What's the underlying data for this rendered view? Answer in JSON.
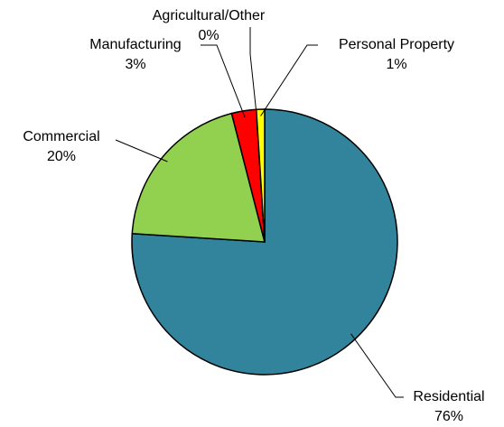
{
  "chart_data": {
    "type": "pie",
    "categories": [
      "Residential",
      "Commercial",
      "Manufacturing",
      "Agricultural/Other",
      "Personal Property"
    ],
    "values": [
      76,
      20,
      3,
      0,
      1
    ],
    "value_labels": [
      "76%",
      "20%",
      "3%",
      "0%",
      "1%"
    ],
    "colors": [
      "#31849b",
      "#92d050",
      "#ff0000",
      "#000000",
      "#ffff00"
    ]
  }
}
